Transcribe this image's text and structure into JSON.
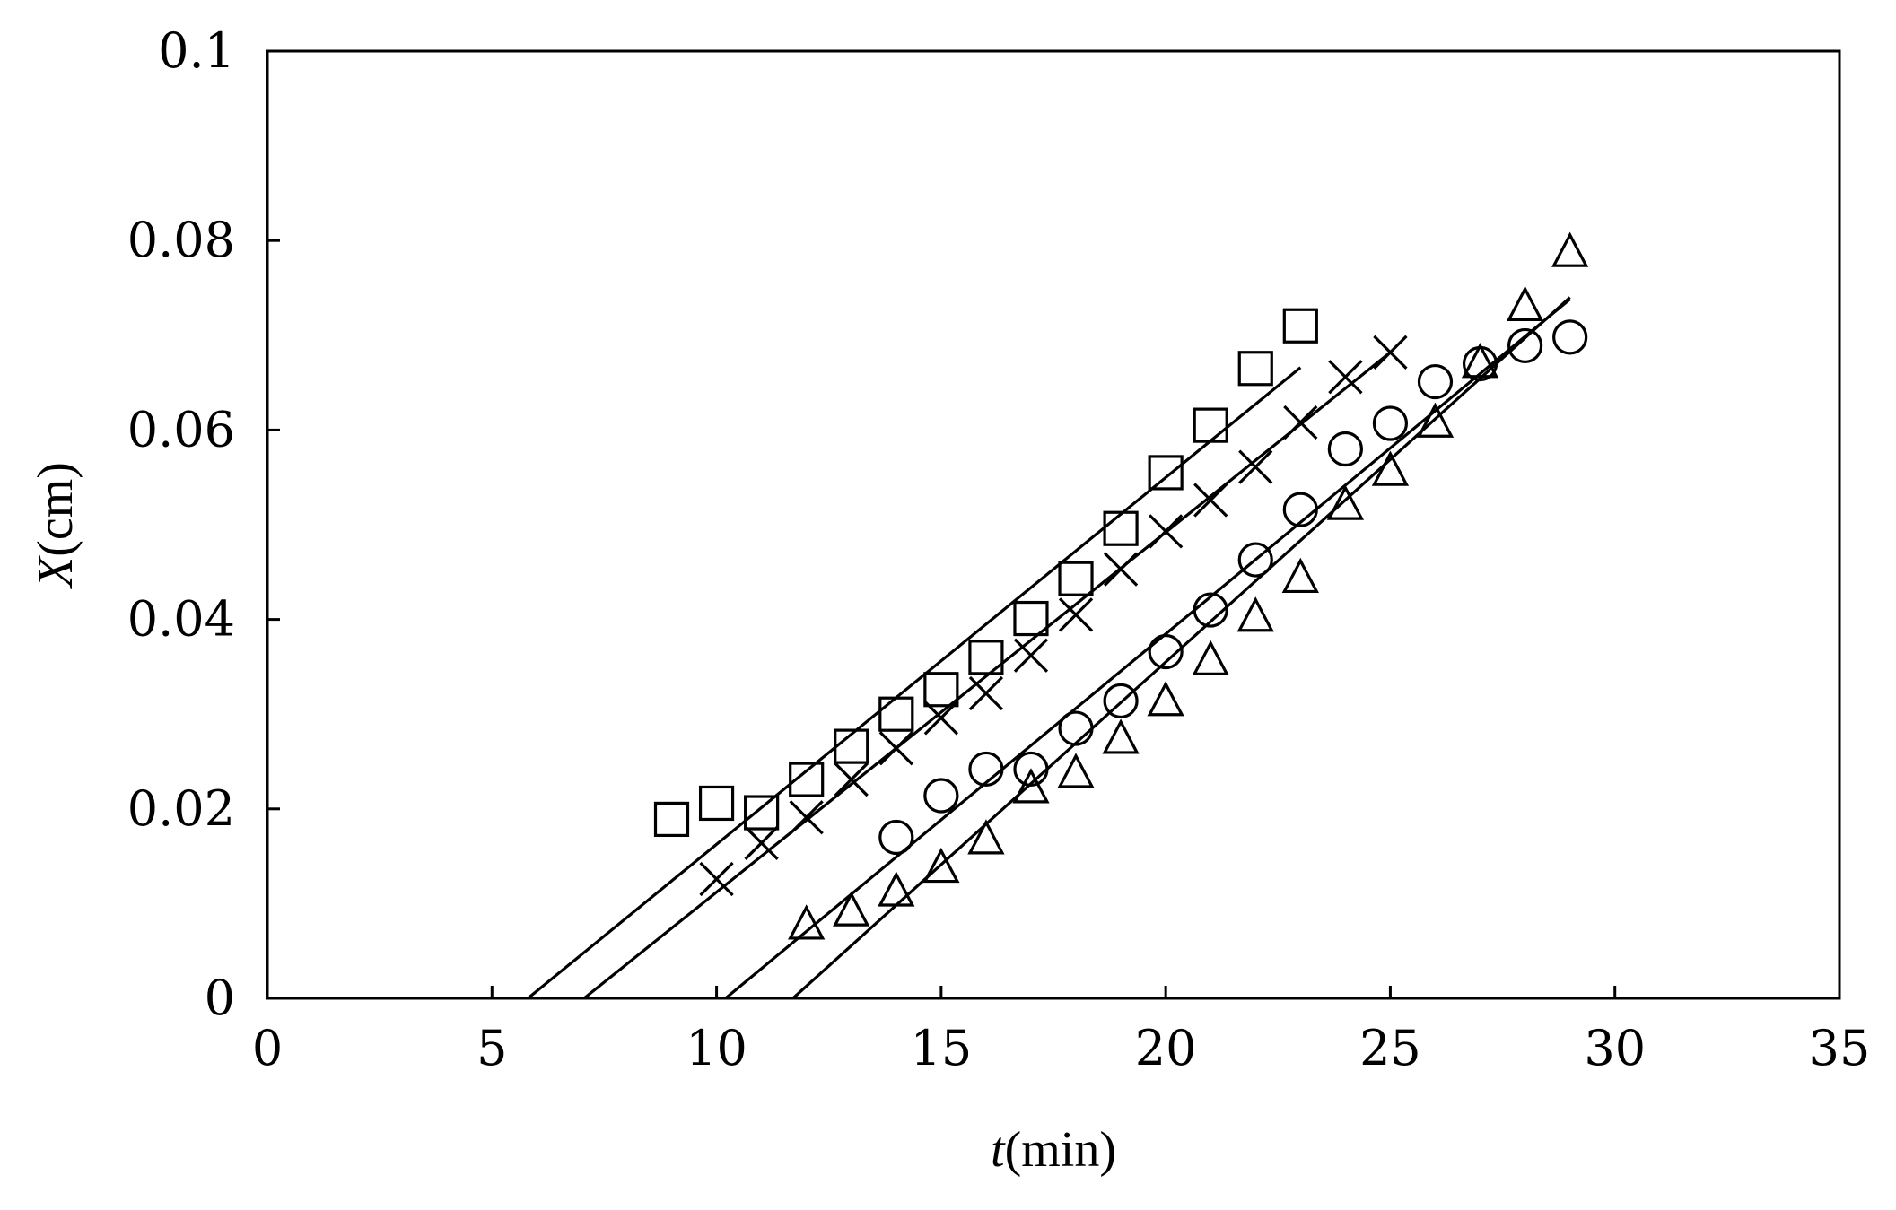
{
  "chart_data": {
    "type": "scatter",
    "title": "",
    "xlabel": {
      "var": "t",
      "unit": "(min)"
    },
    "ylabel": {
      "var": "X",
      "unit": "(cm)"
    },
    "xlim": [
      0,
      35
    ],
    "ylim": [
      0,
      0.1
    ],
    "x_ticks": [
      {
        "value": 0,
        "label": "0"
      },
      {
        "value": 5,
        "label": "5"
      },
      {
        "value": 10,
        "label": "10"
      },
      {
        "value": 15,
        "label": "15"
      },
      {
        "value": 20,
        "label": "20"
      },
      {
        "value": 25,
        "label": "25"
      },
      {
        "value": 30,
        "label": "30"
      },
      {
        "value": 35,
        "label": "35"
      }
    ],
    "y_ticks": [
      {
        "value": 0,
        "label": "0"
      },
      {
        "value": 0.02,
        "label": "0.02"
      },
      {
        "value": 0.04,
        "label": "0.04"
      },
      {
        "value": 0.06,
        "label": "0.06"
      },
      {
        "value": 0.08,
        "label": "0.08"
      },
      {
        "value": 0.1,
        "label": "0.1"
      }
    ],
    "grid": false,
    "legend": "none",
    "series": [
      {
        "marker": "square",
        "color": "#000000",
        "x": [
          9,
          10,
          11,
          12,
          13,
          14,
          15,
          16,
          17,
          18,
          19,
          20,
          21,
          22,
          23
        ],
        "y": [
          0.0189,
          0.0206,
          0.0196,
          0.0231,
          0.0266,
          0.03,
          0.0326,
          0.036,
          0.0401,
          0.0443,
          0.0496,
          0.0555,
          0.0605,
          0.0665,
          0.071
        ],
        "fit": {
          "x": [
            5.8,
            23
          ],
          "y": [
            0,
            0.0666
          ]
        }
      },
      {
        "marker": "x",
        "color": "#000000",
        "x": [
          10,
          11,
          12,
          13,
          14,
          15,
          16,
          17,
          18,
          19,
          20,
          21,
          22,
          23,
          24,
          25
        ],
        "y": [
          0.0126,
          0.0164,
          0.0191,
          0.0231,
          0.0264,
          0.0296,
          0.0322,
          0.0362,
          0.0405,
          0.0453,
          0.0493,
          0.0526,
          0.0561,
          0.0608,
          0.0656,
          0.0682
        ],
        "fit": {
          "x": [
            7.05,
            25
          ],
          "y": [
            0,
            0.0682
          ]
        }
      },
      {
        "marker": "circle",
        "color": "#000000",
        "x": [
          14,
          15,
          16,
          17,
          18,
          19,
          20,
          21,
          22,
          23,
          24,
          25,
          26,
          27,
          28,
          29
        ],
        "y": [
          0.017,
          0.0214,
          0.0242,
          0.0242,
          0.0285,
          0.0314,
          0.0366,
          0.041,
          0.0463,
          0.0516,
          0.058,
          0.0607,
          0.0651,
          0.067,
          0.0689,
          0.0698
        ],
        "fit": {
          "x": [
            10.2,
            29
          ],
          "y": [
            0,
            0.0738
          ]
        }
      },
      {
        "marker": "triangle",
        "color": "#000000",
        "x": [
          12,
          13,
          14,
          15,
          16,
          17,
          18,
          19,
          20,
          21,
          22,
          23,
          24,
          25,
          26,
          27,
          28,
          29
        ],
        "y": [
          0.0078,
          0.0092,
          0.0113,
          0.0138,
          0.0168,
          0.0222,
          0.0238,
          0.0274,
          0.0314,
          0.0357,
          0.0403,
          0.0444,
          0.0521,
          0.0557,
          0.0608,
          0.0671,
          0.0731,
          0.0788
        ],
        "fit": {
          "x": [
            11.7,
            29
          ],
          "y": [
            0,
            0.074
          ]
        }
      }
    ]
  }
}
